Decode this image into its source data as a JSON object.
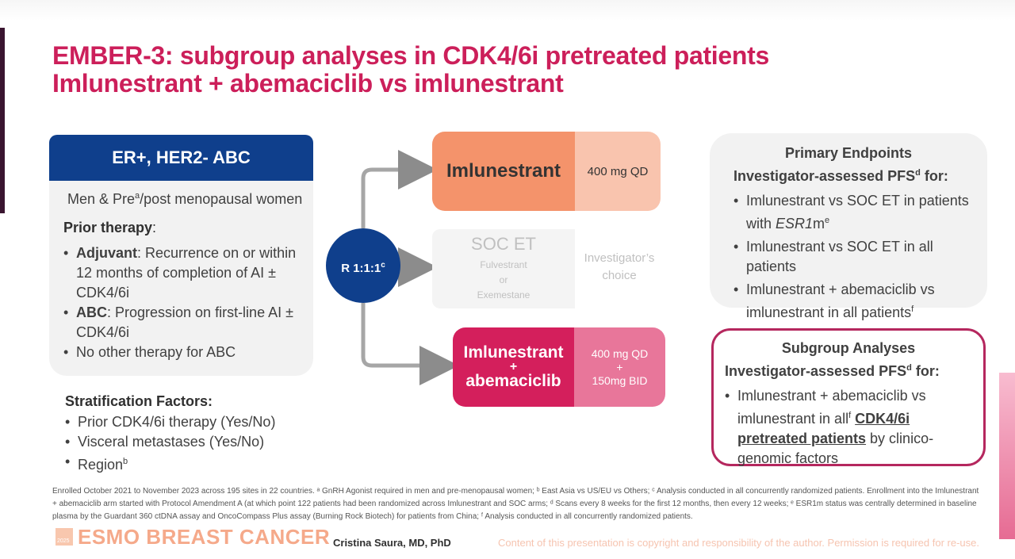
{
  "title": {
    "line1": "EMBER-3: subgroup analyses in CDK4/6i pretreated patients",
    "line2": "Imlunestrant + abemaciclib vs imlunestrant"
  },
  "population": {
    "header": "ER+, HER2- ABC",
    "subtitle_pre": "Men & Pre",
    "subtitle_sup": "a",
    "subtitle_post": "/post menopausal women",
    "prior_heading": "Prior therapy",
    "prior_colon": ":",
    "prior_items": [
      {
        "bold": "Adjuvant",
        "text": ": Recurrence on or within 12 months of completion of AI ± CDK4/6i"
      },
      {
        "bold": "ABC",
        "text": ": Progression on first-line AI ± CDK4/6i"
      },
      {
        "bold": "",
        "text": "No other therapy for ABC"
      }
    ]
  },
  "stratification": {
    "heading": "Stratification Factors:",
    "items": [
      "Prior CDK4/6i therapy (Yes/No)",
      "Visceral metastases (Yes/No)",
      "Region"
    ],
    "region_sup": "b"
  },
  "randomization": {
    "label": "R 1:1:1",
    "sup": "c"
  },
  "arms": {
    "arm1": {
      "name": "Imlunestrant",
      "dose": "400 mg QD"
    },
    "arm2": {
      "name": "SOC ET",
      "sub1": "Fulvestrant",
      "sub2": "or",
      "sub3": "Exemestane",
      "choice1": "Investigator’s",
      "choice2": "choice"
    },
    "arm3": {
      "name1": "Imlunestrant",
      "plus": "+",
      "name2": "abemaciclib",
      "dose1": "400 mg QD",
      "dose_plus": "+",
      "dose2": "150mg BID"
    }
  },
  "primary_endpoints": {
    "heading": "Primary Endpoints",
    "sub_pre": "Investigator-assessed PFS",
    "sub_sup": "d",
    "sub_post": " for:",
    "item1_pre": "Imlunestrant vs SOC ET in patients with ",
    "item1_ital": "ESR1",
    "item1_m": "m",
    "item1_sup": "e",
    "item2": "Imlunestrant vs SOC ET in all patients",
    "item3": "Imlunestrant + abemaciclib vs imlunestrant in all patients",
    "item3_sup": "f"
  },
  "subgroup": {
    "heading": "Subgroup Analyses",
    "sub_pre": "Investigator-assessed PFS",
    "sub_sup": "d",
    "sub_post": " for:",
    "item_pre": "Imlunestrant + abemaciclib vs imlunestrant in all",
    "item_sup": "f",
    "item_bold": "CDK4/6i pretreated patients",
    "item_post": " by clinico-genomic factors"
  },
  "footnote": "Enrolled October 2021 to November 2023 across 195 sites in 22 countries. ᵃ GnRH Agonist required in men and pre-menopausal women; ᵇ East Asia vs US/EU vs Others; ᶜ Analysis conducted in all concurrently randomized patients. Enrollment into the Imlunestrant + abemaciclib arm started with Protocol Amendment A (at which point 122 patients had been randomized across Imlunestrant and SOC arms; ᵈ Scans every 8 weeks for the first 12 months, then every 12 weeks; ᵉ ESR1m status was centrally determined in baseline plasma by the Guardant 360 ctDNA assay and OncoCompass Plus assay (Burning Rock Biotech) for patients from China; ᶠ Analysis conducted in all concurrently randomized patients.",
  "footer": {
    "logo_year": "2025",
    "logo": "ESMO BREAST CANCER",
    "author": "Cristina Saura, MD, PhD",
    "copyright": "Content of this presentation is copyright and responsibility of the author. Permission is required for re-use."
  }
}
